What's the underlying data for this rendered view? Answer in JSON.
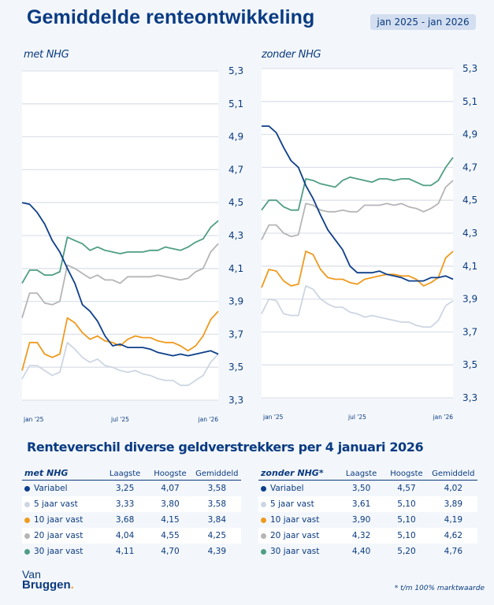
{
  "header": {
    "title": "Gemiddelde renteontwikkeling",
    "date_range": "jan 2025 - jan 2026"
  },
  "colors": {
    "Variabel": "#0d3f8a",
    "5 jaar vast": "#cdd6e3",
    "10 jaar vast": "#ee9a1e",
    "20 jaar vast": "#b5b5b5",
    "30 jaar vast": "#4f9e84"
  },
  "chart_data": [
    {
      "type": "line",
      "title": "met NHG",
      "xlabel": "",
      "ylabel": "",
      "ylim": [
        3.3,
        5.3
      ],
      "yticks": [
        5.3,
        5.1,
        4.9,
        4.7,
        4.5,
        4.3,
        4.1,
        3.9,
        3.7,
        3.5,
        3.3
      ],
      "ytick_labels": [
        "5,3",
        "5,1",
        "4,9",
        "4,7",
        "4,5",
        "4,3",
        "4,1",
        "3,9",
        "3,7",
        "3,5",
        "3,3"
      ],
      "xtick_labels": [
        "jan '25",
        "jul '25",
        "jan '26"
      ],
      "xtick_positions": [
        0,
        13,
        26
      ],
      "grid": true,
      "x": [
        0,
        1,
        2,
        3,
        4,
        5,
        6,
        7,
        8,
        9,
        10,
        11,
        12,
        13,
        14,
        15,
        16,
        17,
        18,
        19,
        20,
        21,
        22,
        23,
        24,
        25,
        26
      ],
      "series": [
        {
          "name": "Variabel",
          "values": [
            4.5,
            4.49,
            4.44,
            4.37,
            4.27,
            4.2,
            4.1,
            4.01,
            3.88,
            3.84,
            3.78,
            3.69,
            3.63,
            3.64,
            3.62,
            3.62,
            3.62,
            3.61,
            3.59,
            3.58,
            3.57,
            3.58,
            3.57,
            3.58,
            3.59,
            3.6,
            3.58
          ]
        },
        {
          "name": "5 jaar vast",
          "values": [
            3.43,
            3.51,
            3.51,
            3.48,
            3.45,
            3.47,
            3.65,
            3.61,
            3.56,
            3.53,
            3.55,
            3.51,
            3.5,
            3.48,
            3.47,
            3.48,
            3.46,
            3.45,
            3.43,
            3.42,
            3.42,
            3.39,
            3.39,
            3.42,
            3.45,
            3.53,
            3.58
          ]
        },
        {
          "name": "10 jaar vast",
          "values": [
            3.48,
            3.65,
            3.65,
            3.58,
            3.56,
            3.58,
            3.8,
            3.77,
            3.71,
            3.67,
            3.69,
            3.66,
            3.65,
            3.63,
            3.67,
            3.69,
            3.68,
            3.68,
            3.66,
            3.65,
            3.65,
            3.63,
            3.6,
            3.63,
            3.69,
            3.79,
            3.84
          ]
        },
        {
          "name": "20 jaar vast",
          "values": [
            3.8,
            3.95,
            3.95,
            3.89,
            3.88,
            3.9,
            4.12,
            4.1,
            4.07,
            4.04,
            4.06,
            4.03,
            4.03,
            4.01,
            4.05,
            4.05,
            4.05,
            4.05,
            4.06,
            4.05,
            4.04,
            4.03,
            4.04,
            4.08,
            4.1,
            4.2,
            4.25
          ]
        },
        {
          "name": "30 jaar vast",
          "values": [
            4.01,
            4.09,
            4.09,
            4.06,
            4.06,
            4.08,
            4.29,
            4.27,
            4.25,
            4.21,
            4.23,
            4.21,
            4.2,
            4.19,
            4.2,
            4.2,
            4.2,
            4.21,
            4.21,
            4.23,
            4.22,
            4.21,
            4.23,
            4.26,
            4.28,
            4.35,
            4.39
          ]
        }
      ]
    },
    {
      "type": "line",
      "title": "zonder NHG",
      "xlabel": "",
      "ylabel": "",
      "ylim": [
        3.3,
        5.3
      ],
      "yticks": [
        5.3,
        5.1,
        4.9,
        4.7,
        4.5,
        4.3,
        4.1,
        3.9,
        3.7,
        3.5,
        3.3
      ],
      "ytick_labels": [
        "5,3",
        "5,1",
        "4,9",
        "4,7",
        "4,5",
        "4,3",
        "4,1",
        "3,9",
        "3,7",
        "3,5",
        "3,3"
      ],
      "xtick_labels": [
        "jan '25",
        "jul '25",
        "jan '26"
      ],
      "xtick_positions": [
        0,
        13,
        26
      ],
      "grid": true,
      "x": [
        0,
        1,
        2,
        3,
        4,
        5,
        6,
        7,
        8,
        9,
        10,
        11,
        12,
        13,
        14,
        15,
        16,
        17,
        18,
        19,
        20,
        21,
        22,
        23,
        24,
        25,
        26
      ],
      "series": [
        {
          "name": "Variabel",
          "values": [
            4.95,
            4.95,
            4.91,
            4.82,
            4.74,
            4.7,
            4.59,
            4.51,
            4.41,
            4.32,
            4.26,
            4.2,
            4.1,
            4.06,
            4.06,
            4.06,
            4.07,
            4.05,
            4.04,
            4.03,
            4.01,
            4.01,
            4.01,
            4.03,
            4.03,
            4.04,
            4.02
          ]
        },
        {
          "name": "5 jaar vast",
          "values": [
            3.81,
            3.9,
            3.89,
            3.81,
            3.8,
            3.8,
            3.98,
            3.96,
            3.9,
            3.87,
            3.85,
            3.85,
            3.82,
            3.81,
            3.79,
            3.8,
            3.79,
            3.78,
            3.77,
            3.76,
            3.76,
            3.74,
            3.73,
            3.73,
            3.77,
            3.86,
            3.89
          ]
        },
        {
          "name": "10 jaar vast",
          "values": [
            3.97,
            4.08,
            4.07,
            4.01,
            3.98,
            3.99,
            4.19,
            4.17,
            4.08,
            4.03,
            4.02,
            4.02,
            4.0,
            3.99,
            4.02,
            4.03,
            4.04,
            4.05,
            4.05,
            4.04,
            4.04,
            4.02,
            3.98,
            4.0,
            4.03,
            4.15,
            4.19
          ]
        },
        {
          "name": "20 jaar vast",
          "values": [
            4.26,
            4.35,
            4.35,
            4.3,
            4.28,
            4.29,
            4.48,
            4.47,
            4.44,
            4.43,
            4.43,
            4.44,
            4.43,
            4.43,
            4.47,
            4.47,
            4.47,
            4.48,
            4.47,
            4.48,
            4.46,
            4.45,
            4.43,
            4.45,
            4.48,
            4.58,
            4.62
          ]
        },
        {
          "name": "30 jaar vast",
          "values": [
            4.44,
            4.5,
            4.5,
            4.46,
            4.44,
            4.44,
            4.63,
            4.62,
            4.6,
            4.59,
            4.58,
            4.62,
            4.64,
            4.63,
            4.62,
            4.61,
            4.63,
            4.63,
            4.62,
            4.63,
            4.63,
            4.61,
            4.59,
            4.59,
            4.62,
            4.7,
            4.76
          ]
        }
      ]
    }
  ],
  "table_section": {
    "title": "Renteverschil diverse geldverstrekkers per 4 januari 2026",
    "columns": [
      "Laagste",
      "Hoogste",
      "Gemiddeld"
    ],
    "tables": [
      {
        "name": "met NHG",
        "rows": [
          {
            "label": "Variabel",
            "laagste": "3,25",
            "hoogste": "4,07",
            "gemiddeld": "3,58"
          },
          {
            "label": "5 jaar vast",
            "laagste": "3,33",
            "hoogste": "3,80",
            "gemiddeld": "3,58"
          },
          {
            "label": "10 jaar vast",
            "laagste": "3,68",
            "hoogste": "4,15",
            "gemiddeld": "3,84"
          },
          {
            "label": "20 jaar vast",
            "laagste": "4,04",
            "hoogste": "4,55",
            "gemiddeld": "4,25"
          },
          {
            "label": "30 jaar vast",
            "laagste": "4,11",
            "hoogste": "4,70",
            "gemiddeld": "4,39"
          }
        ]
      },
      {
        "name": "zonder NHG*",
        "rows": [
          {
            "label": "Variabel",
            "laagste": "3,50",
            "hoogste": "4,57",
            "gemiddeld": "4,02"
          },
          {
            "label": "5 jaar vast",
            "laagste": "3,61",
            "hoogste": "5,10",
            "gemiddeld": "3,89"
          },
          {
            "label": "10 jaar vast",
            "laagste": "3,90",
            "hoogste": "5,10",
            "gemiddeld": "4,19"
          },
          {
            "label": "20 jaar vast",
            "laagste": "4,32",
            "hoogste": "5,10",
            "gemiddeld": "4,62"
          },
          {
            "label": "30 jaar vast",
            "laagste": "4,40",
            "hoogste": "5,20",
            "gemiddeld": "4,76"
          }
        ]
      }
    ]
  },
  "footer": {
    "logo_line1": "Van",
    "logo_line2": "Bruggen",
    "logo_dot": ".",
    "footnote": "* t/m 100% marktwaarde"
  }
}
